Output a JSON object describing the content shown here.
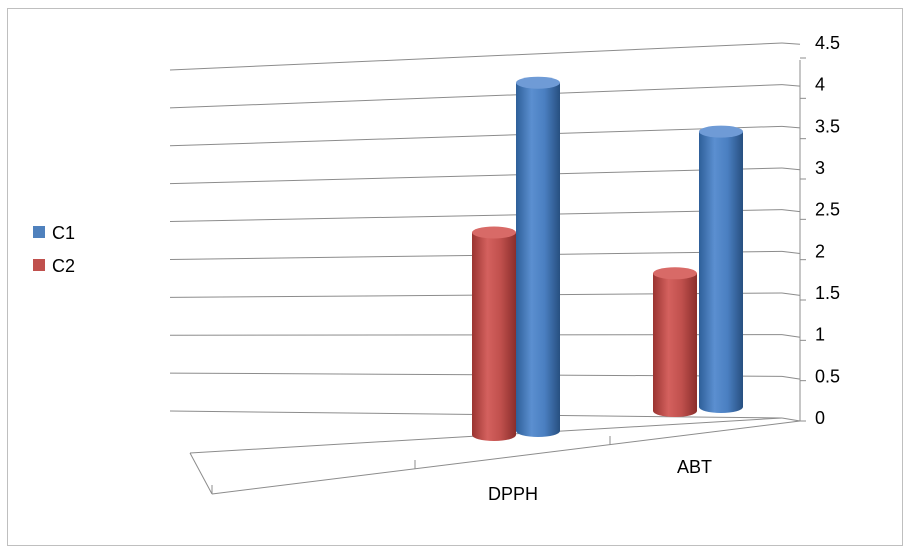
{
  "chart_data": {
    "type": "bar",
    "style": "3d-cylinder",
    "categories": [
      "DPPH",
      "ABT"
    ],
    "series": [
      {
        "name": "C1",
        "values": [
          4.3,
          3.4
        ],
        "color": "#4f81bd"
      },
      {
        "name": "C2",
        "values": [
          2.5,
          1.7
        ],
        "color": "#c0504d"
      }
    ],
    "title": "",
    "xlabel": "",
    "ylabel": "",
    "ylim": [
      0,
      4.5
    ],
    "yticks": [
      "0",
      "0.5",
      "1",
      "1.5",
      "2",
      "2.5",
      "3",
      "3.5",
      "4",
      "4.5"
    ],
    "grid": true,
    "legend_position": "left"
  }
}
